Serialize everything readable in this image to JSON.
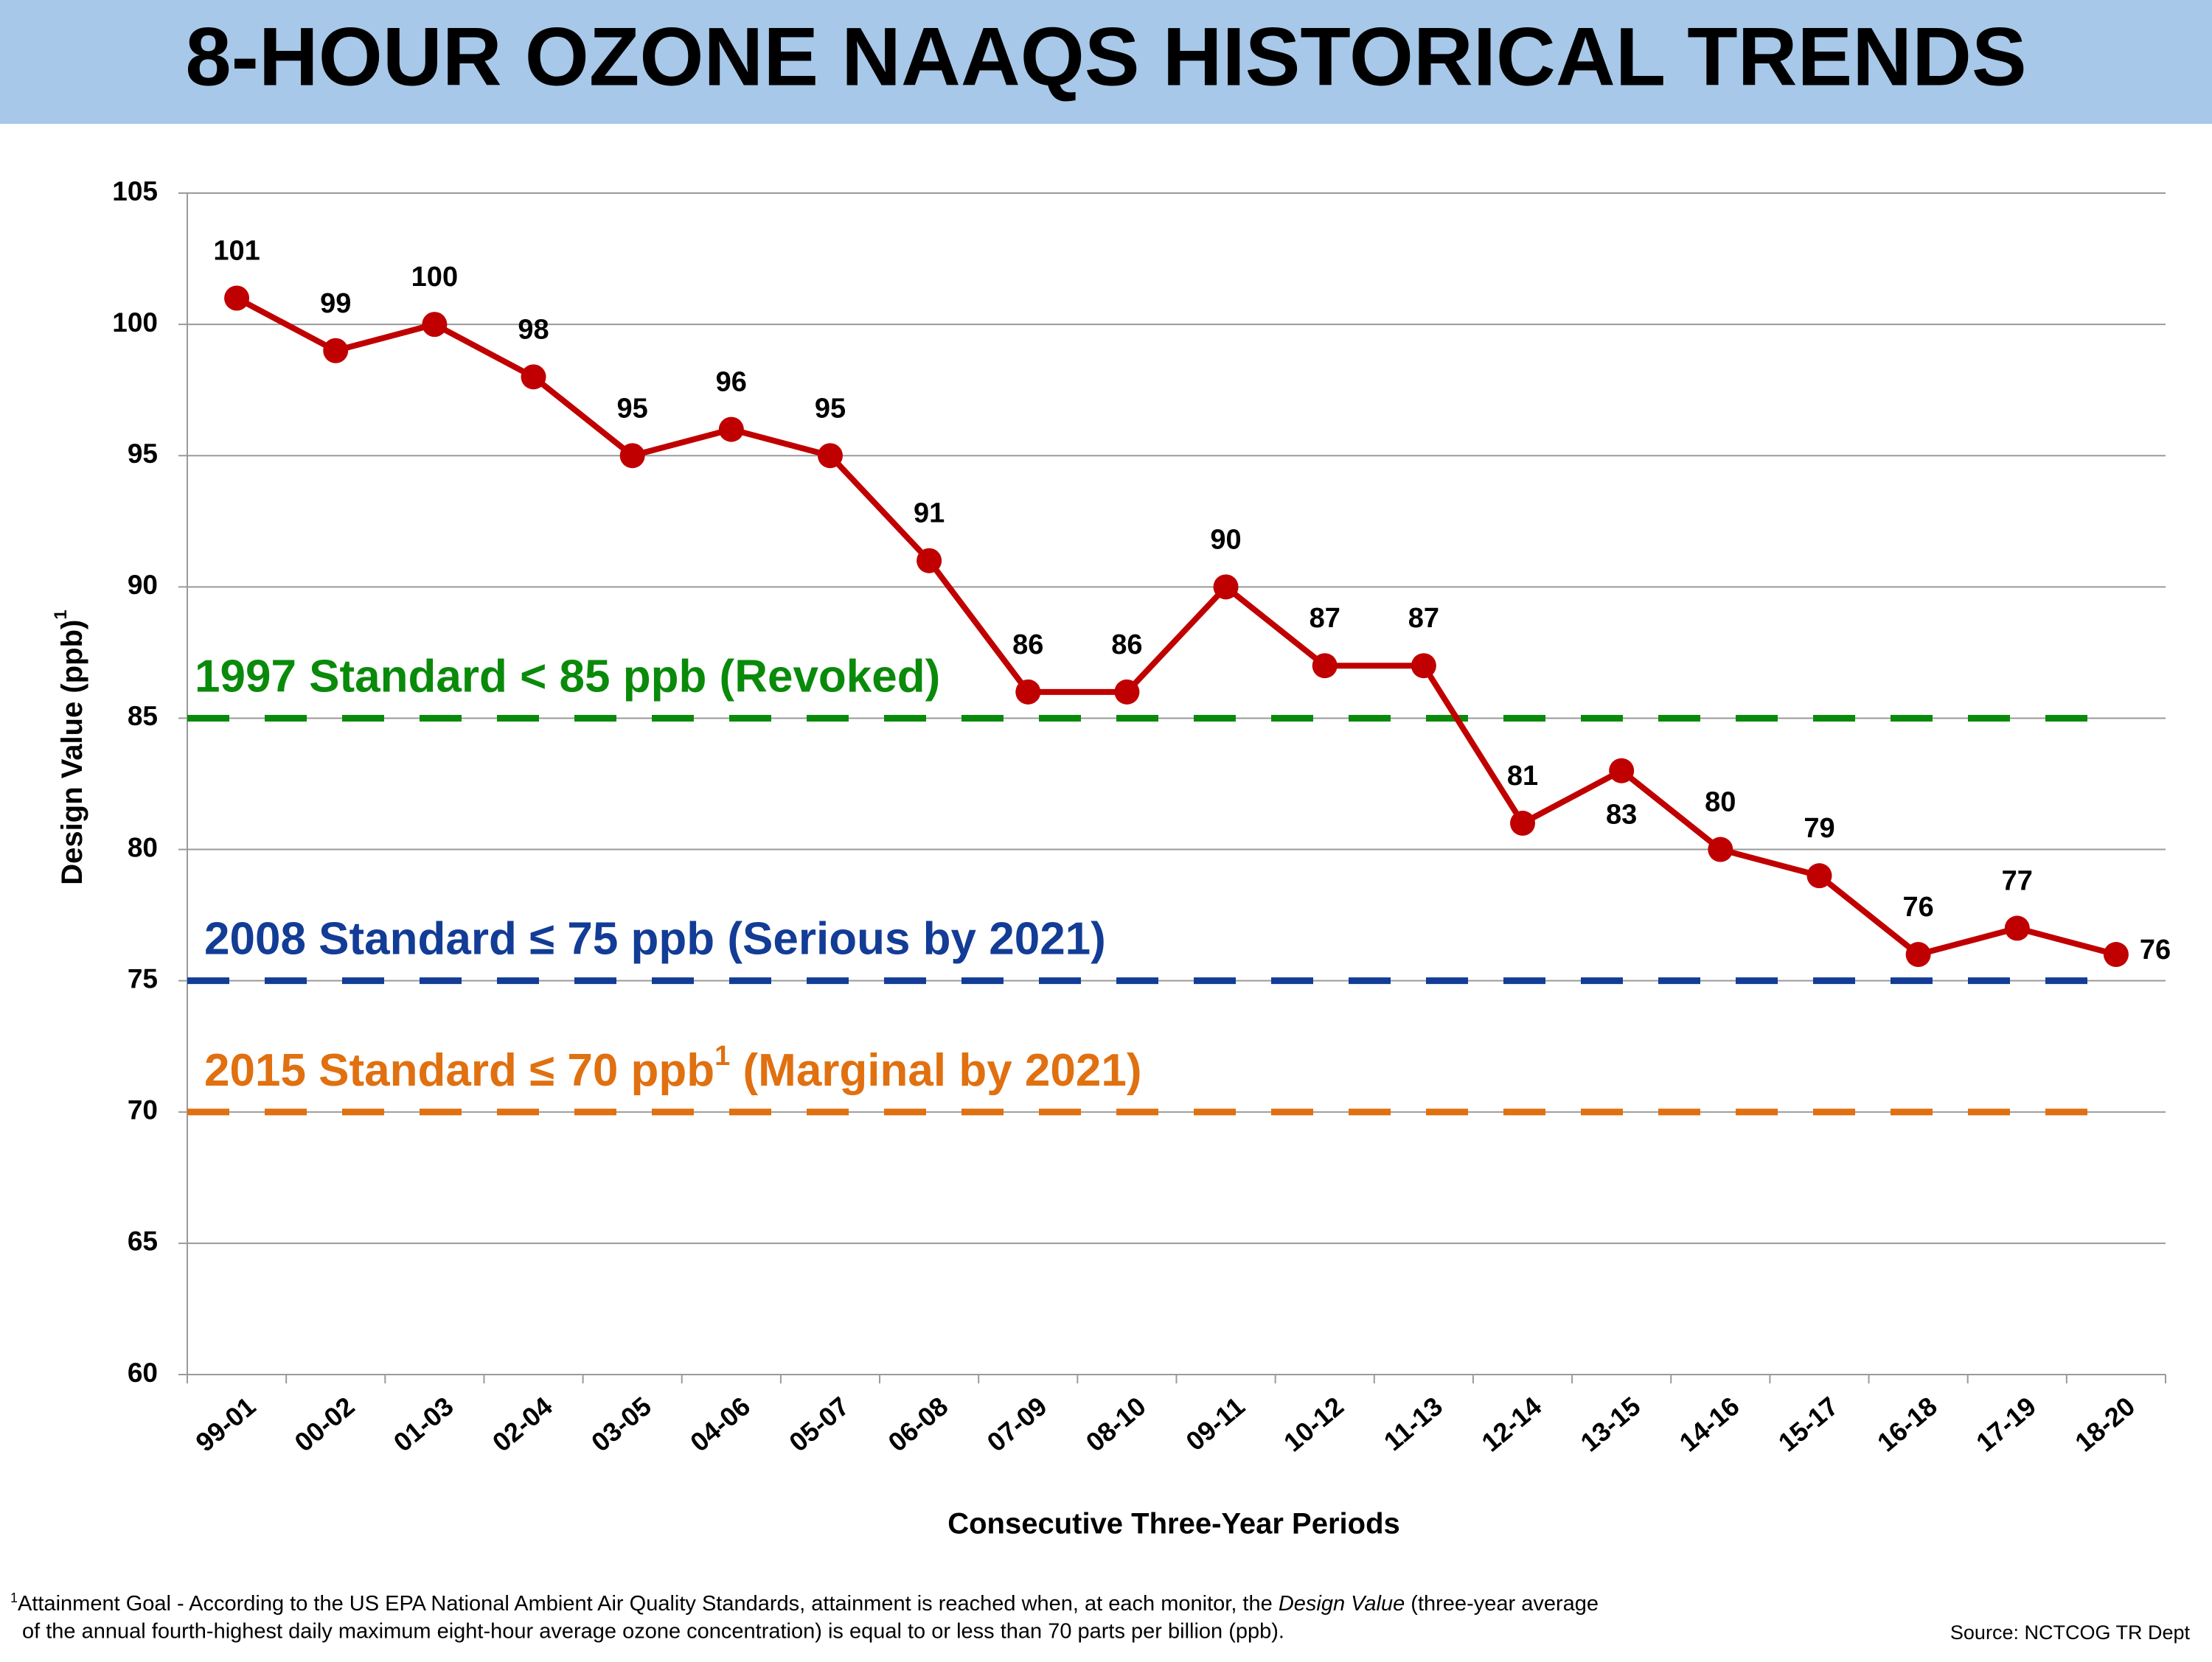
{
  "chart_data": {
    "type": "line",
    "title": "8-HOUR OZONE NAAQS HISTORICAL TRENDS",
    "x_label": "Consecutive Three-Year Periods",
    "y_label": {
      "text": "Design Value (ppb)",
      "sup": "1"
    },
    "categories": [
      "99-01",
      "00-02",
      "01-03",
      "02-04",
      "03-05",
      "04-06",
      "05-07",
      "06-08",
      "07-09",
      "08-10",
      "09-11",
      "10-12",
      "11-13",
      "12-14",
      "13-15",
      "14-16",
      "15-17",
      "16-18",
      "17-19",
      "18-20"
    ],
    "series": [
      {
        "color": "#c00000",
        "values": [
          101,
          99,
          100,
          98,
          95,
          96,
          95,
          91,
          86,
          86,
          90,
          87,
          87,
          81,
          83,
          80,
          79,
          76,
          77,
          76
        ]
      }
    ],
    "ylim": [
      60,
      105
    ],
    "yticks": [
      60,
      65,
      70,
      75,
      80,
      85,
      90,
      95,
      100,
      105
    ],
    "grid": true,
    "reference_lines": [
      {
        "value": 85,
        "color": "#0a8a0a",
        "label": {
          "text": "1997 Standard < 85 ppb (Revoked)"
        }
      },
      {
        "value": 75,
        "color": "#123c96",
        "label": {
          "text": "2008 Standard ≤ 75 ppb (Serious by 2021)"
        }
      },
      {
        "value": 70,
        "color": "#e07010",
        "label": {
          "text": "2015 Standard ≤ 70 ppb",
          "sup": "1",
          "suffix": " (Marginal by 2021)"
        }
      }
    ],
    "footnote": {
      "marker": "1",
      "line1": "Attainment Goal - According to the US EPA National Ambient Air Quality Standards, attainment is reached when, at each monitor, the ",
      "emphasis": "Design Value",
      "line1_end": " (three-year average",
      "line2": "of the annual fourth-highest daily maximum eight-hour average ozone concentration) is equal to or less than 70 parts per billion (ppb)."
    },
    "source": "Source:  NCTCOG TR Dept"
  }
}
